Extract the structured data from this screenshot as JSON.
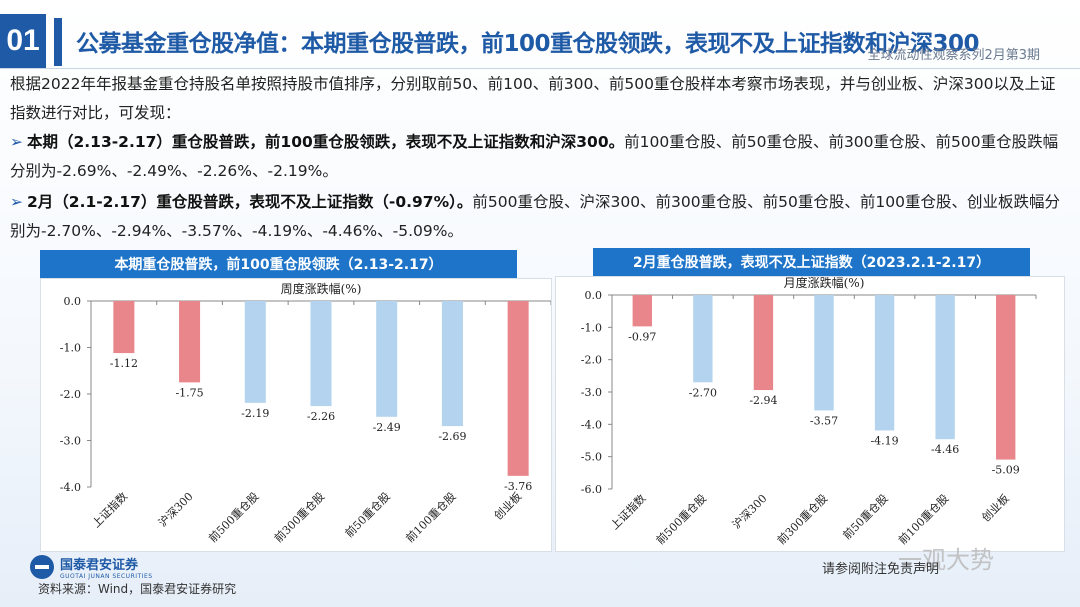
{
  "header": {
    "number": "01",
    "title": "公募基金重仓股净值：本期重仓股普跌，前100重仓股领跌，表现不及上证指数和沪深300",
    "subtitle": "全球流动性观察系列2月第3期"
  },
  "intro": "根据2022年年报基金重仓持股名单按照持股市值排序，分别取前50、前100、前300、前500重仓股样本考察市场表现，并与创业板、沪深300以及上证指数进行对比，可发现：",
  "bullets": [
    {
      "bold": "本期（2.13-2.17）重仓股普跌，前100重仓股领跌，表现不及上证指数和沪深300。",
      "rest": "前100重仓股、前50重仓股、前300重仓股、前500重仓股跌幅分别为-2.69%、-2.49%、-2.26%、-2.19%。"
    },
    {
      "bold": "2月（2.1-2.17）重仓股普跌，表现不及上证指数（-0.97%）。",
      "rest": "前500重仓股、沪深300、前300重仓股、前50重仓股、前100重仓股、创业板跌幅分别为-2.70%、-2.94%、-3.57%、-4.19%、-4.46%、-5.09%。"
    }
  ],
  "colors": {
    "red": "#e8868c",
    "blue": "#b4d3ee",
    "accent": "#1f5aa6"
  },
  "chart_data": [
    {
      "type": "bar",
      "panel_title": "本期重仓股普跌，前100重仓股领跌（2.13-2.17）",
      "title": "周度涨跌幅(%)",
      "categories": [
        "上证指数",
        "沪深300",
        "前500重仓股",
        "前300重仓股",
        "前50重仓股",
        "前100重仓股",
        "创业板"
      ],
      "values": [
        -1.12,
        -1.75,
        -2.19,
        -2.26,
        -2.49,
        -2.69,
        -3.76
      ],
      "labels": [
        "-1.12",
        "-1.75",
        "-2.19",
        "-2.26",
        "-2.49",
        "-2.69",
        "-3.76"
      ],
      "bar_colors": [
        "red",
        "red",
        "blue",
        "blue",
        "blue",
        "blue",
        "red"
      ],
      "ylim": [
        -4.0,
        0.0
      ],
      "yticks": [
        0.0,
        -1.0,
        -2.0,
        -3.0,
        -4.0
      ],
      "ytick_labels": [
        "0.0",
        "-1.0",
        "-2.0",
        "-3.0",
        "-4.0"
      ],
      "grid": false
    },
    {
      "type": "bar",
      "panel_title": "2月重仓股普跌，表现不及上证指数（2023.2.1-2.17）",
      "title": "月度涨跌幅(%)",
      "categories": [
        "上证指数",
        "前500重仓股",
        "沪深300",
        "前300重仓股",
        "前50重仓股",
        "前100重仓股",
        "创业板"
      ],
      "values": [
        -0.97,
        -2.7,
        -2.94,
        -3.57,
        -4.19,
        -4.46,
        -5.09
      ],
      "labels": [
        "-0.97",
        "-2.70",
        "-2.94",
        "-3.57",
        "-4.19",
        "-4.46",
        "-5.09"
      ],
      "bar_colors": [
        "red",
        "blue",
        "red",
        "blue",
        "blue",
        "blue",
        "red"
      ],
      "ylim": [
        -6.0,
        0.0
      ],
      "yticks": [
        0.0,
        -1.0,
        -2.0,
        -3.0,
        -4.0,
        -5.0,
        -6.0
      ],
      "ytick_labels": [
        "0.0",
        "-1.0",
        "-2.0",
        "-3.0",
        "-4.0",
        "-5.0",
        "-6.0"
      ],
      "grid": false
    }
  ],
  "footer": {
    "logo_cn": "国泰君安证券",
    "logo_en": "GUOTAI JUNAN SECURITIES",
    "source": "资料来源：Wind，国泰君安证券研究",
    "note": "请参阅附注免责声明",
    "watermark": "一观大势"
  }
}
